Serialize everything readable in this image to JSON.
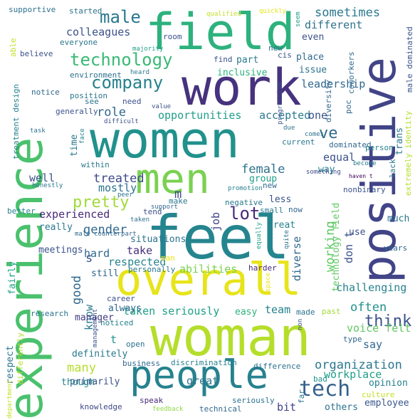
{
  "words": [
    {
      "text": "woman",
      "color": "#b5de2b"
    },
    {
      "text": "women",
      "color": "#21918c"
    },
    {
      "text": "feel",
      "color": "#25858e"
    },
    {
      "text": "work",
      "color": "#46327e"
    },
    {
      "text": "people",
      "color": "#26828e"
    },
    {
      "text": "overall",
      "color": "#e7e419"
    },
    {
      "text": "field",
      "color": "#2db27d"
    },
    {
      "text": "men",
      "color": "#7ad151"
    },
    {
      "text": "experience",
      "color": "#4ac16d"
    },
    {
      "text": "positive",
      "color": "#414487"
    },
    {
      "text": "technology",
      "color": "#3aba76"
    },
    {
      "text": "company",
      "color": "#26828e"
    },
    {
      "text": "male",
      "color": "#2a788e"
    },
    {
      "text": "tech",
      "color": "#35608d"
    },
    {
      "text": "sometimes",
      "color": "#2a788e"
    },
    {
      "text": "colleagues",
      "color": "#3b528b"
    },
    {
      "text": "opportunities",
      "color": "#1f9e89"
    },
    {
      "text": "role",
      "color": "#31688e"
    },
    {
      "text": "ve",
      "color": "#31688e"
    },
    {
      "text": "treated",
      "color": "#3e4989"
    },
    {
      "text": "female",
      "color": "#2c728e"
    },
    {
      "text": "pretty",
      "color": "#a0da39"
    },
    {
      "text": "gender",
      "color": "#31688e"
    },
    {
      "text": "lot",
      "color": "#482878"
    },
    {
      "text": "working",
      "color": "#5ec962"
    },
    {
      "text": "think",
      "color": "#3b528b"
    },
    {
      "text": "organization",
      "color": "#2a788e"
    },
    {
      "text": "often",
      "color": "#21918c"
    },
    {
      "text": "voice felt",
      "color": "#5ec962"
    },
    {
      "text": "taken seriously",
      "color": "#1fa188"
    },
    {
      "text": "challenging",
      "color": "#26828e"
    },
    {
      "text": "respected",
      "color": "#26828e"
    },
    {
      "text": "good",
      "color": "#31688e"
    },
    {
      "text": "many",
      "color": "#b5de2b"
    },
    {
      "text": "know",
      "color": "#2a788e"
    },
    {
      "text": "abilities",
      "color": "#7ad151"
    },
    {
      "text": "team",
      "color": "#26828e"
    },
    {
      "text": "say",
      "color": "#31688e"
    },
    {
      "text": "great",
      "color": "#2c728e"
    },
    {
      "text": "bit",
      "color": "#414487"
    },
    {
      "text": "others",
      "color": "#2c728e"
    },
    {
      "text": "employee",
      "color": "#39568c"
    },
    {
      "text": "workplace",
      "color": "#1f9e89"
    },
    {
      "text": "opinion",
      "color": "#26828e"
    },
    {
      "text": "don t",
      "color": "#3b528b"
    },
    {
      "text": "diverse",
      "color": "#31688e"
    },
    {
      "text": "technology field",
      "color": "#5ec962"
    },
    {
      "text": "t",
      "color": "#21918c"
    },
    {
      "text": "s",
      "color": "#3b528b"
    },
    {
      "text": "m",
      "color": "#3e4989"
    },
    {
      "text": "well",
      "color": "#3b528b"
    },
    {
      "text": "mostly",
      "color": "#2c728e"
    },
    {
      "text": "experienced",
      "color": "#482878"
    },
    {
      "text": "really",
      "color": "#2a788e"
    },
    {
      "text": "hard",
      "color": "#31688e"
    },
    {
      "text": "take",
      "color": "#472d7b"
    },
    {
      "text": "personally",
      "color": "#2a788e"
    },
    {
      "text": "still",
      "color": "#31688e"
    },
    {
      "text": "always",
      "color": "#31688e"
    },
    {
      "text": "manager",
      "color": "#443983"
    },
    {
      "text": "definitely",
      "color": "#2a788e"
    },
    {
      "text": "primarily",
      "color": "#3b528b"
    },
    {
      "text": "though",
      "color": "#26828e"
    },
    {
      "text": "knowledge",
      "color": "#3e4989"
    },
    {
      "text": "discrimination",
      "color": "#26828e"
    },
    {
      "text": "speak",
      "color": "#482878"
    },
    {
      "text": "seriously",
      "color": "#2c728e"
    },
    {
      "text": "technical",
      "color": "#31688e"
    },
    {
      "text": "feedback",
      "color": "#8fd744"
    },
    {
      "text": "easy",
      "color": "#2db27d"
    },
    {
      "text": "made",
      "color": "#2c728e"
    },
    {
      "text": "past",
      "color": "#a0da39"
    },
    {
      "text": "type",
      "color": "#31688e"
    },
    {
      "text": "culture",
      "color": "#c2df23"
    },
    {
      "text": "bad",
      "color": "#21918c"
    },
    {
      "text": "difference",
      "color": "#2c728e"
    },
    {
      "text": "far",
      "color": "#2c728e"
    },
    {
      "text": "business",
      "color": "#31688e"
    },
    {
      "text": "open",
      "color": "#2c728e"
    },
    {
      "text": "respect",
      "color": "#2a788e"
    },
    {
      "text": "research",
      "color": "#2c728e"
    },
    {
      "text": "noticed",
      "color": "#26828e"
    },
    {
      "text": "management",
      "color": "#3b528b"
    },
    {
      "text": "department",
      "color": "#c2df23"
    },
    {
      "text": "differently",
      "color": "#b5de2b"
    },
    {
      "text": "fairly",
      "color": "#1fa188"
    },
    {
      "text": "meetings",
      "color": "#3b528b"
    },
    {
      "text": "career",
      "color": "#3b528b"
    },
    {
      "text": "man",
      "color": "#e7e419"
    },
    {
      "text": "situations",
      "color": "#2c728e"
    },
    {
      "text": "harder",
      "color": "#482878"
    },
    {
      "text": "equally",
      "color": "#1fa188"
    },
    {
      "text": "quite",
      "color": "#2c728e"
    },
    {
      "text": "space",
      "color": "#e7e419"
    },
    {
      "text": "non",
      "color": "#3b528b"
    },
    {
      "text": "years",
      "color": "#31688e"
    },
    {
      "text": "treat",
      "color": "#26828e"
    },
    {
      "text": "small",
      "color": "#2a788e"
    },
    {
      "text": "now",
      "color": "#31688e"
    },
    {
      "text": "use",
      "color": "#3b528b"
    },
    {
      "text": "much",
      "color": "#2c728e"
    },
    {
      "text": "negative",
      "color": "#2a788e"
    },
    {
      "text": "tend",
      "color": "#3b528b"
    },
    {
      "text": "make",
      "color": "#2a788e"
    },
    {
      "text": "job",
      "color": "#414487"
    },
    {
      "text": "less",
      "color": "#3b528b"
    },
    {
      "text": "group",
      "color": "#1f9e89"
    },
    {
      "text": "new",
      "color": "#31688e"
    },
    {
      "text": "equal",
      "color": "#3b528b"
    },
    {
      "text": "way",
      "color": "#26828e"
    },
    {
      "text": "nonbinary",
      "color": "#3b528b"
    },
    {
      "text": "lack",
      "color": "#2a788e"
    },
    {
      "text": "become",
      "color": "#2a788e"
    },
    {
      "text": "person",
      "color": "#26828e"
    },
    {
      "text": "something",
      "color": "#3e4989"
    },
    {
      "text": "haven t",
      "color": "#440154"
    },
    {
      "text": "promotion",
      "color": "#26828e"
    },
    {
      "text": "accepted",
      "color": "#2a788e"
    },
    {
      "text": "one",
      "color": "#3b528b"
    },
    {
      "text": "current",
      "color": "#2a788e"
    },
    {
      "text": "comes",
      "color": "#2c728e"
    },
    {
      "text": "due",
      "color": "#2c728e"
    },
    {
      "text": "dominated",
      "color": "#31688e"
    },
    {
      "text": "diversity",
      "color": "#31688e"
    },
    {
      "text": "poc",
      "color": "#31688e"
    },
    {
      "text": "extremely identity",
      "color": "#b5de2b"
    },
    {
      "text": "coworkers",
      "color": "#31688e"
    },
    {
      "text": "male dominated",
      "color": "#3b528b"
    },
    {
      "text": "trans",
      "color": "#2a788e"
    },
    {
      "text": "leadership",
      "color": "#31688e"
    },
    {
      "text": "issue",
      "color": "#2c728e"
    },
    {
      "text": "progressive",
      "color": "#3b528b"
    },
    {
      "text": "inclusive",
      "color": "#2db27d"
    },
    {
      "text": "place",
      "color": "#31688e"
    },
    {
      "text": "cis",
      "color": "#3b528b"
    },
    {
      "text": "part",
      "color": "#2a788e"
    },
    {
      "text": "find",
      "color": "#3b528b"
    },
    {
      "text": "different",
      "color": "#2c728e"
    },
    {
      "text": "even",
      "color": "#3b528b"
    },
    {
      "text": "new",
      "color": "#2c728e"
    },
    {
      "text": "seem",
      "color": "#1fa188"
    },
    {
      "text": "qualified",
      "color": "#c2df23"
    },
    {
      "text": "quickly",
      "color": "#e7e419"
    },
    {
      "text": "started",
      "color": "#2c728e"
    },
    {
      "text": "supportive",
      "color": "#2c728e"
    },
    {
      "text": "able",
      "color": "#c2df23"
    },
    {
      "text": "believe",
      "color": "#3b528b"
    },
    {
      "text": "everyone",
      "color": "#2a788e"
    },
    {
      "text": "majority",
      "color": "#1f9e89"
    },
    {
      "text": "room",
      "color": "#3b528b"
    },
    {
      "text": "environment",
      "color": "#2c728e"
    },
    {
      "text": "heard",
      "color": "#2a788e"
    },
    {
      "text": "notice",
      "color": "#31688e"
    },
    {
      "text": "position",
      "color": "#2a788e"
    },
    {
      "text": "see",
      "color": "#2c728e"
    },
    {
      "text": "need",
      "color": "#3b528b"
    },
    {
      "text": "value",
      "color": "#3b528b"
    },
    {
      "text": "treatment design",
      "color": "#26828e"
    },
    {
      "text": "generally",
      "color": "#3b528b"
    },
    {
      "text": "difficult",
      "color": "#3b528b"
    },
    {
      "text": "time",
      "color": "#2a788e"
    },
    {
      "text": "task",
      "color": "#2c728e"
    },
    {
      "text": "face",
      "color": "#26828e"
    },
    {
      "text": "within",
      "color": "#2a788e"
    },
    {
      "text": "honestly",
      "color": "#2a788e"
    },
    {
      "text": "peer",
      "color": "#2c728e"
    },
    {
      "text": "better",
      "color": "#26828e"
    },
    {
      "text": "support",
      "color": "#31688e"
    },
    {
      "text": "male counterpart",
      "color": "#31688e"
    },
    {
      "text": "taken",
      "color": "#2c728e"
    }
  ]
}
